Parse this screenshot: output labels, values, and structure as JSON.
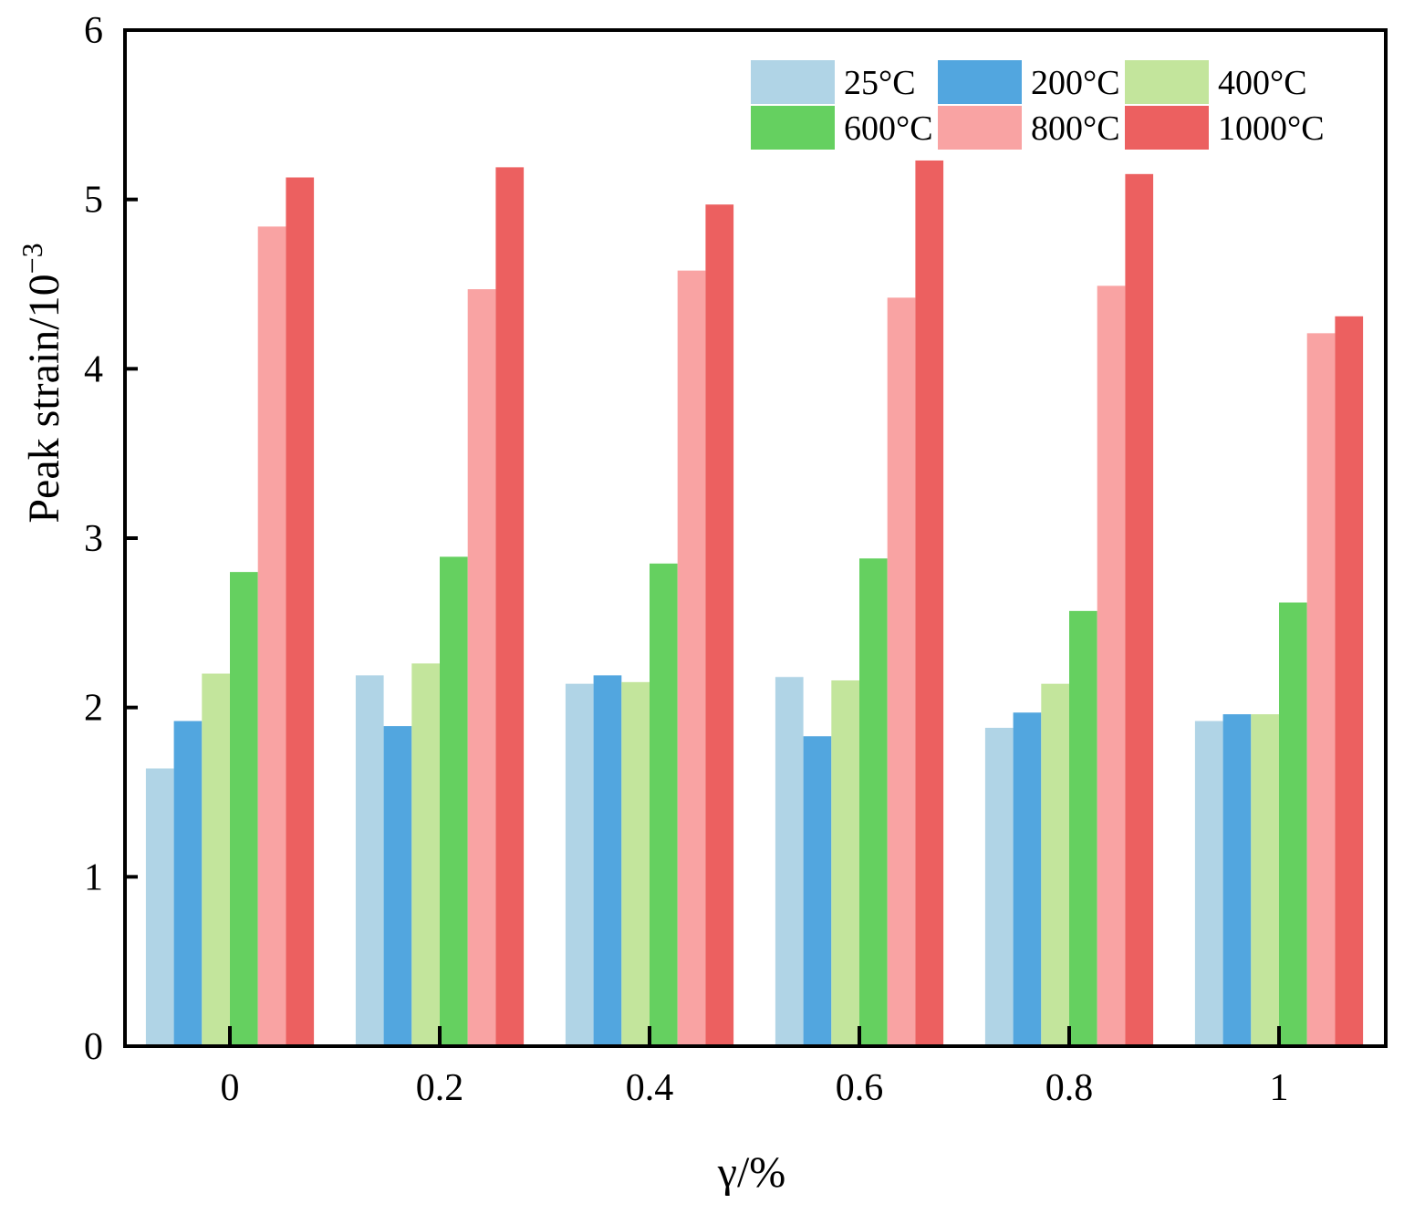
{
  "chart_data": {
    "type": "bar",
    "title": "",
    "xlabel": "γ/%",
    "ylabel": "Peak strain/10",
    "ylabel_exponent": "−3",
    "categories": [
      "0",
      "0.2",
      "0.4",
      "0.6",
      "0.8",
      "1"
    ],
    "ylim": [
      0,
      6
    ],
    "yticks": [
      "0",
      "1",
      "2",
      "3",
      "4",
      "5",
      "6"
    ],
    "grid": false,
    "legend_position": "top-right",
    "series": [
      {
        "name": "25°C",
        "color": "#b0d4e6",
        "values": [
          1.64,
          2.19,
          2.14,
          2.18,
          1.88,
          1.92
        ]
      },
      {
        "name": "200°C",
        "color": "#52a6df",
        "values": [
          1.92,
          1.89,
          2.19,
          1.83,
          1.97,
          1.96
        ]
      },
      {
        "name": "400°C",
        "color": "#c3e59c",
        "values": [
          2.2,
          2.26,
          2.15,
          2.16,
          2.14,
          1.96
        ]
      },
      {
        "name": "600°C",
        "color": "#65d060",
        "values": [
          2.8,
          2.89,
          2.85,
          2.88,
          2.57,
          2.62
        ]
      },
      {
        "name": "800°C",
        "color": "#f9a3a3",
        "values": [
          4.84,
          4.47,
          4.58,
          4.42,
          4.49,
          4.21
        ]
      },
      {
        "name": "1000°C",
        "color": "#ec6060",
        "values": [
          5.13,
          5.19,
          4.97,
          5.23,
          5.15,
          4.31
        ]
      }
    ]
  }
}
